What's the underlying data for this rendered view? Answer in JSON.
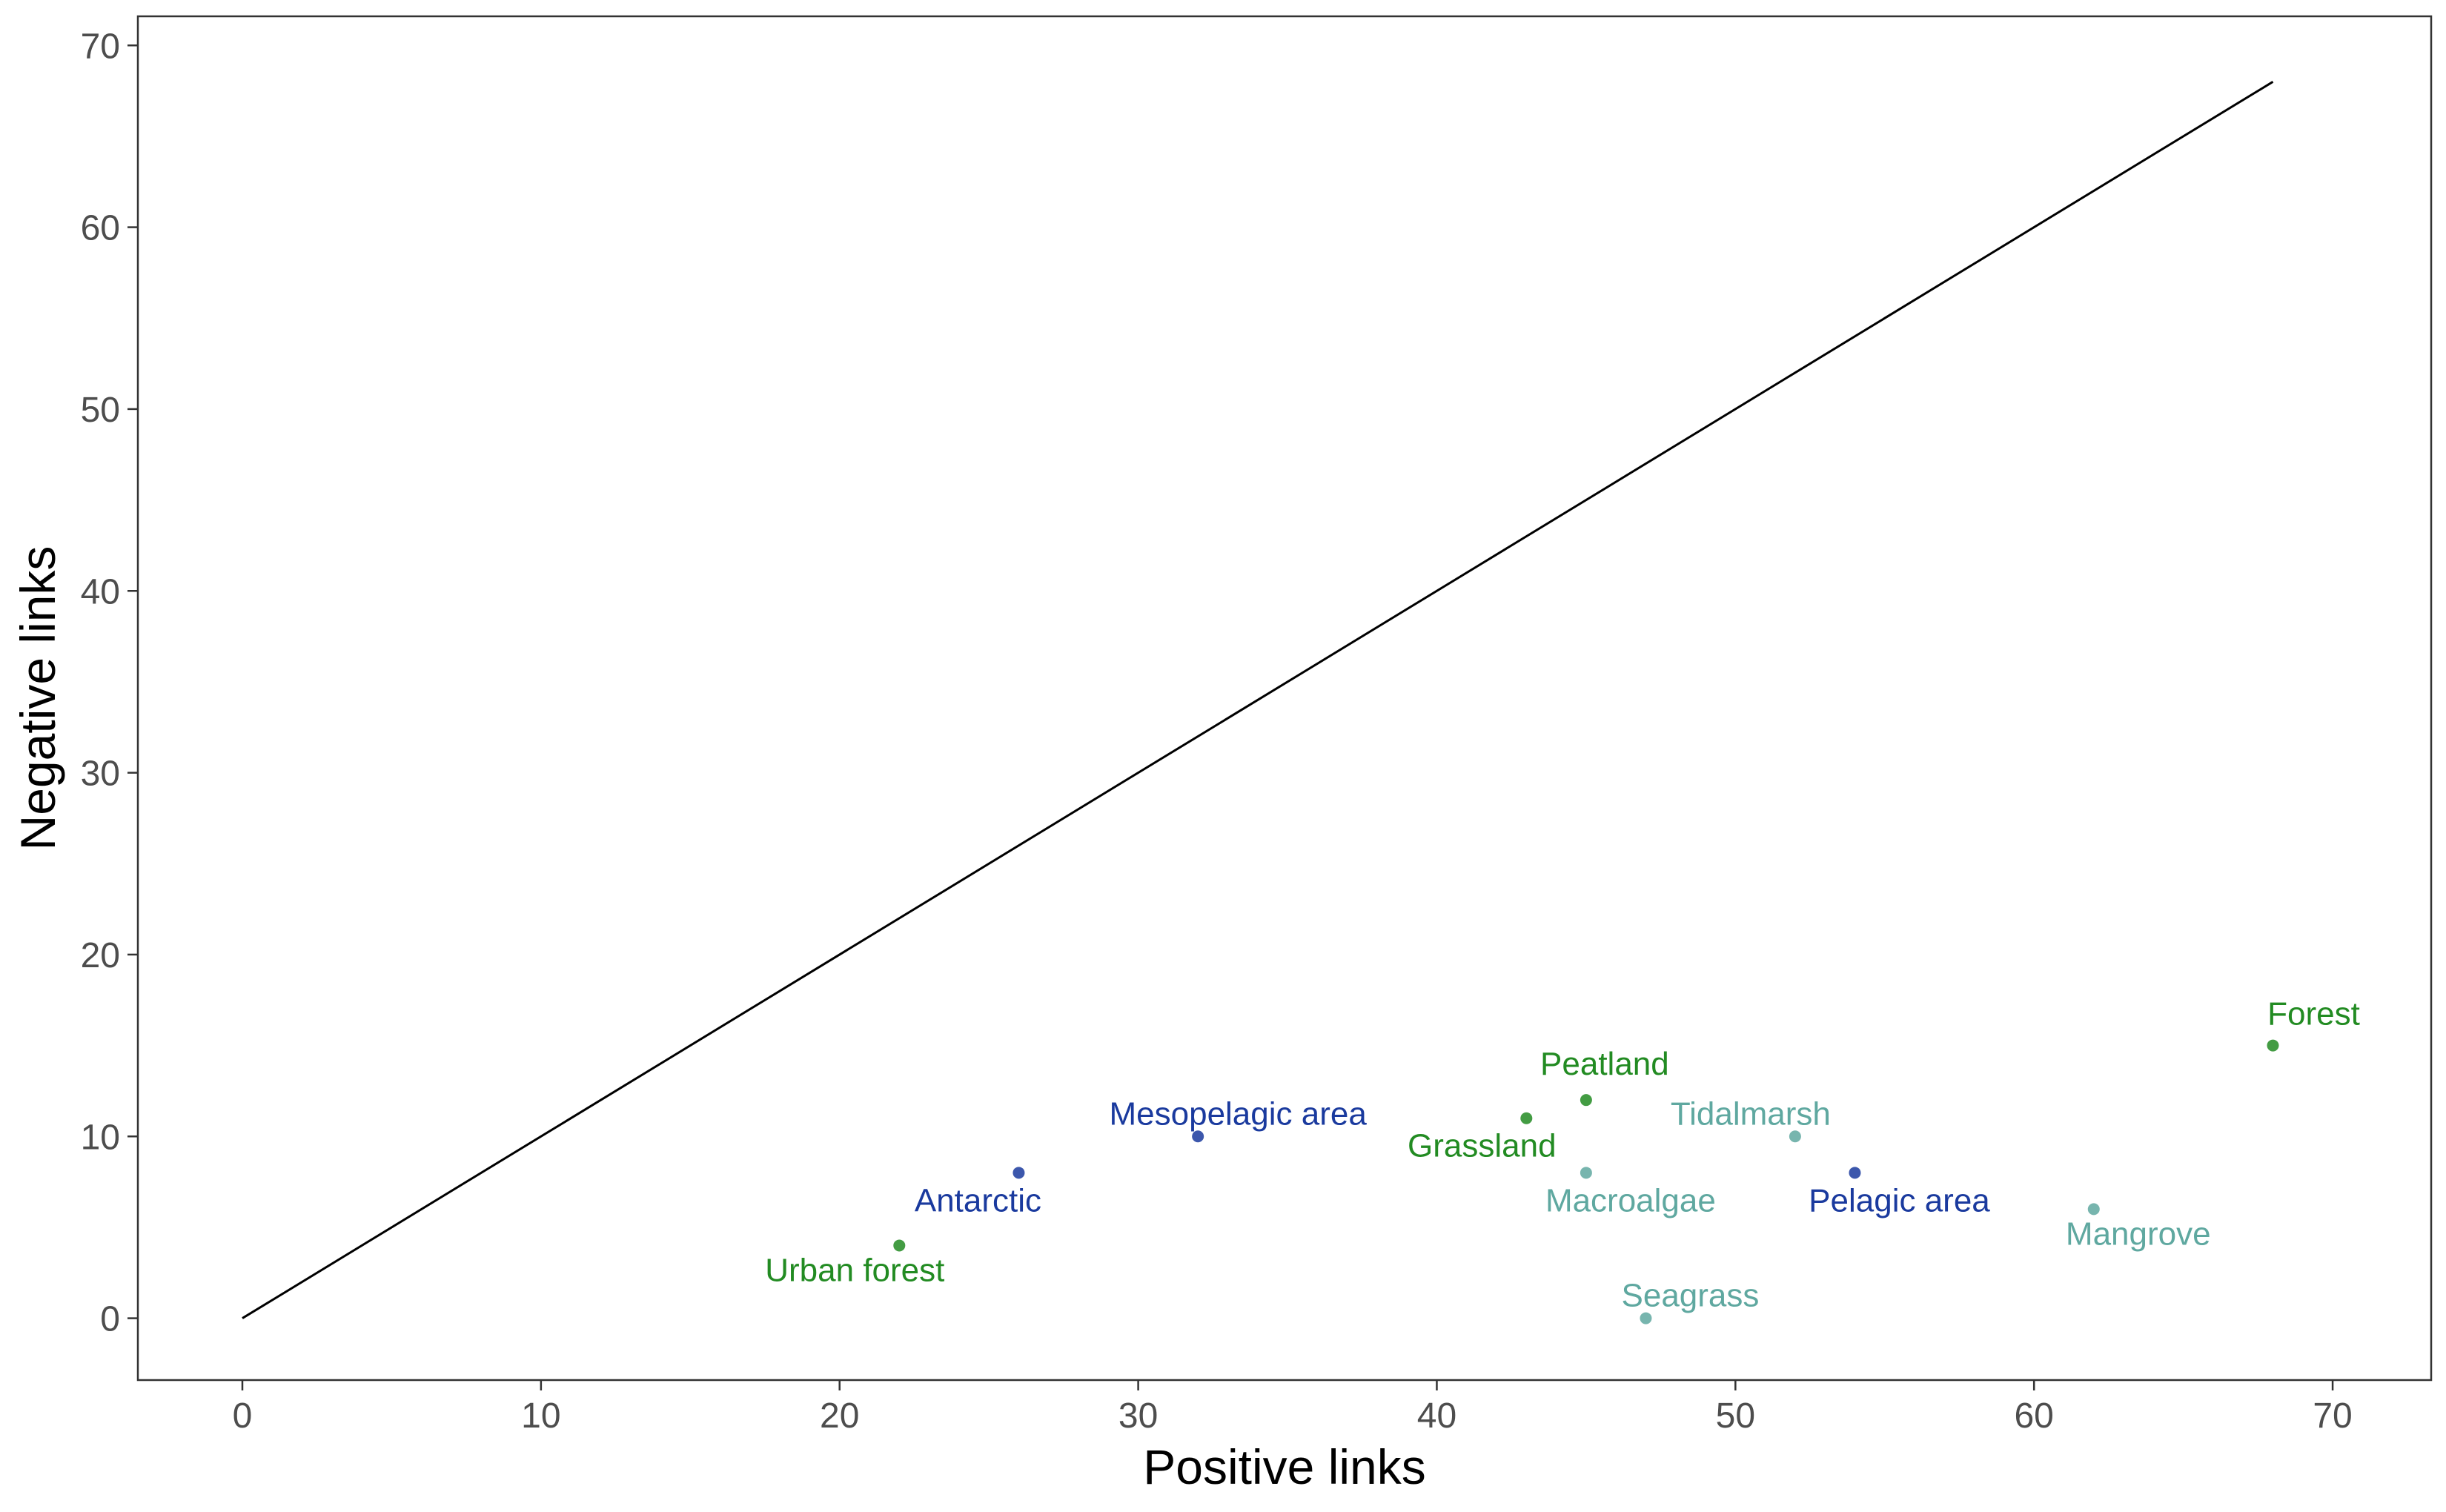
{
  "chart_data": {
    "type": "scatter",
    "title": "",
    "xlabel": "Positive links",
    "ylabel": "Negative links",
    "xlim": [
      -3.5,
      73.3
    ],
    "ylim": [
      -3.4,
      71.6
    ],
    "xticks": [
      0,
      10,
      20,
      30,
      40,
      50,
      60,
      70
    ],
    "yticks": [
      0,
      10,
      20,
      30,
      40,
      50,
      60,
      70
    ],
    "grid": false,
    "reference_line": {
      "x": [
        0,
        68
      ],
      "y": [
        0,
        68
      ],
      "color": "#000000"
    },
    "colors": {
      "terrestrial": "#228B22",
      "coastal": "#5FA8A0",
      "open_ocean": "#1A3A9E"
    },
    "points": [
      {
        "name": "Forest",
        "x": 68,
        "y": 15,
        "group": "terrestrial"
      },
      {
        "name": "Peatland",
        "x": 45,
        "y": 12,
        "group": "terrestrial"
      },
      {
        "name": "Grassland",
        "x": 43,
        "y": 11,
        "group": "terrestrial"
      },
      {
        "name": "Urban forest",
        "x": 22,
        "y": 4,
        "group": "terrestrial"
      },
      {
        "name": "Tidalmarsh",
        "x": 52,
        "y": 10,
        "group": "coastal"
      },
      {
        "name": "Macroalgae",
        "x": 45,
        "y": 8,
        "group": "coastal"
      },
      {
        "name": "Mangrove",
        "x": 62,
        "y": 6,
        "group": "coastal"
      },
      {
        "name": "Seagrass",
        "x": 47,
        "y": 0,
        "group": "coastal"
      },
      {
        "name": "Mesopelagic area",
        "x": 32,
        "y": 10,
        "group": "open_ocean"
      },
      {
        "name": "Antarctic",
        "x": 26,
        "y": 8,
        "group": "open_ocean"
      },
      {
        "name": "Pelagic area",
        "x": 54,
        "y": 8,
        "group": "open_ocean"
      }
    ]
  }
}
